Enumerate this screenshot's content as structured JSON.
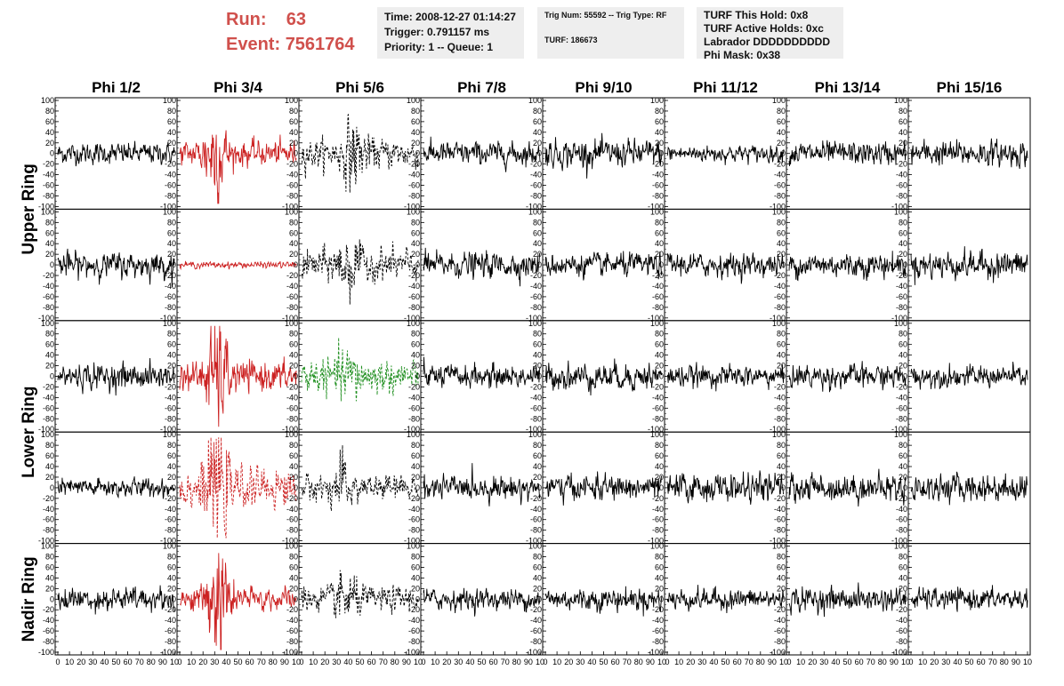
{
  "header": {
    "run_label": "Run:",
    "run_value": "63",
    "event_label": "Event:",
    "event_value": "7561764",
    "time_line": "Time: 2008-12-27 01:14:27",
    "trigger_line": "Trigger: 0.791157 ms",
    "priority_line": "Priority: 1 -- Queue: 1",
    "trig_line": "Trig Num: 55592 -- Trig Type: RF",
    "turf_line": "TURF: 186673",
    "hold_line": "TURF This Hold: 0x8",
    "active_line": "TURF Active Holds: 0xc",
    "labrador_line": "Labrador DDDDDDDDDD",
    "phimask_line": "Phi Mask: 0x38"
  },
  "colors": {
    "header_red": "#d0504c",
    "trace_black": "#000000",
    "trace_red": "#cc2222",
    "trace_green": "#1f8f1f",
    "box_bg": "#eeeeee"
  },
  "chart_data": {
    "type": "line",
    "columns": [
      "Phi 1/2",
      "Phi 3/4",
      "Phi 5/6",
      "Phi 7/8",
      "Phi 9/10",
      "Phi 11/12",
      "Phi 13/14",
      "Phi 15/16"
    ],
    "ring_labels": [
      {
        "label": "Upper Ring",
        "rows": [
          0,
          1
        ]
      },
      {
        "label": "Lower Ring",
        "rows": [
          2,
          3
        ]
      },
      {
        "label": "Nadir Ring",
        "rows": [
          4
        ]
      }
    ],
    "xlim": [
      0,
      100
    ],
    "ylim": [
      -100,
      100
    ],
    "xticks": [
      0,
      10,
      20,
      30,
      40,
      50,
      60,
      70,
      80,
      90,
      100
    ],
    "xtick_labels_bottom": "0 10 20 30 40 50 60 70 80 90 10",
    "yticks": [
      100,
      80,
      60,
      40,
      20,
      0,
      -20,
      -40,
      -60,
      -80,
      -100
    ],
    "panels": [
      [
        {
          "color": "black",
          "style": "solid",
          "amp": 10,
          "burst": 0,
          "center": 0.5
        },
        {
          "color": "red",
          "style": "solid",
          "amp": 12,
          "burst": 38,
          "center": 0.3
        },
        {
          "color": "black",
          "style": "dashed",
          "amp": 14,
          "burst": 25,
          "center": 0.45
        },
        {
          "color": "black",
          "style": "solid",
          "amp": 11,
          "burst": 0,
          "center": 0.5
        },
        {
          "color": "black",
          "style": "solid",
          "amp": 13,
          "burst": 0,
          "center": 0.5
        },
        {
          "color": "black",
          "style": "solid",
          "amp": 8,
          "burst": 0,
          "center": 0.5
        },
        {
          "color": "black",
          "style": "solid",
          "amp": 11,
          "burst": 0,
          "center": 0.5
        },
        {
          "color": "black",
          "style": "solid",
          "amp": 12,
          "burst": 0,
          "center": 0.5
        }
      ],
      [
        {
          "color": "black",
          "style": "solid",
          "amp": 12,
          "burst": 0,
          "center": 0.5
        },
        {
          "color": "red",
          "style": "solid",
          "amp": 3,
          "burst": 0,
          "center": 0.5
        },
        {
          "color": "black",
          "style": "dashed",
          "amp": 15,
          "burst": 20,
          "center": 0.4
        },
        {
          "color": "black",
          "style": "solid",
          "amp": 12,
          "burst": 0,
          "center": 0.5
        },
        {
          "color": "black",
          "style": "solid",
          "amp": 11,
          "burst": 0,
          "center": 0.5
        },
        {
          "color": "black",
          "style": "solid",
          "amp": 11,
          "burst": 0,
          "center": 0.5
        },
        {
          "color": "black",
          "style": "solid",
          "amp": 12,
          "burst": 0,
          "center": 0.5
        },
        {
          "color": "black",
          "style": "solid",
          "amp": 13,
          "burst": 0,
          "center": 0.5
        }
      ],
      [
        {
          "color": "black",
          "style": "solid",
          "amp": 12,
          "burst": 0,
          "center": 0.5
        },
        {
          "color": "red",
          "style": "solid",
          "amp": 14,
          "burst": 45,
          "center": 0.32
        },
        {
          "color": "green",
          "style": "dashed",
          "amp": 16,
          "burst": 14,
          "center": 0.4
        },
        {
          "color": "black",
          "style": "solid",
          "amp": 11,
          "burst": 0,
          "center": 0.5
        },
        {
          "color": "black",
          "style": "solid",
          "amp": 13,
          "burst": 0,
          "center": 0.5
        },
        {
          "color": "black",
          "style": "solid",
          "amp": 10,
          "burst": 0,
          "center": 0.5
        },
        {
          "color": "black",
          "style": "solid",
          "amp": 11,
          "burst": 0,
          "center": 0.5
        },
        {
          "color": "black",
          "style": "solid",
          "amp": 10,
          "burst": 0,
          "center": 0.5
        }
      ],
      [
        {
          "color": "black",
          "style": "solid",
          "amp": 9,
          "burst": 0,
          "center": 0.5
        },
        {
          "color": "red",
          "style": "dashed",
          "amp": 18,
          "burst": 48,
          "center": 0.32
        },
        {
          "color": "black",
          "style": "dashed",
          "amp": 12,
          "burst": 16,
          "center": 0.35
        },
        {
          "color": "black",
          "style": "solid",
          "amp": 11,
          "burst": 0,
          "center": 0.5
        },
        {
          "color": "black",
          "style": "solid",
          "amp": 12,
          "burst": 0,
          "center": 0.5
        },
        {
          "color": "black",
          "style": "solid",
          "amp": 13,
          "burst": 0,
          "center": 0.5
        },
        {
          "color": "black",
          "style": "solid",
          "amp": 13,
          "burst": 0,
          "center": 0.5
        },
        {
          "color": "black",
          "style": "solid",
          "amp": 13,
          "burst": 0,
          "center": 0.5
        }
      ],
      [
        {
          "color": "black",
          "style": "solid",
          "amp": 11,
          "burst": 0,
          "center": 0.5
        },
        {
          "color": "red",
          "style": "solid",
          "amp": 11,
          "burst": 48,
          "center": 0.33
        },
        {
          "color": "black",
          "style": "dashed",
          "amp": 12,
          "burst": 18,
          "center": 0.38
        },
        {
          "color": "black",
          "style": "solid",
          "amp": 10,
          "burst": 0,
          "center": 0.5
        },
        {
          "color": "black",
          "style": "solid",
          "amp": 11,
          "burst": 0,
          "center": 0.5
        },
        {
          "color": "black",
          "style": "solid",
          "amp": 10,
          "burst": 0,
          "center": 0.5
        },
        {
          "color": "black",
          "style": "solid",
          "amp": 11,
          "burst": 0,
          "center": 0.5
        },
        {
          "color": "black",
          "style": "solid",
          "amp": 10,
          "burst": 0,
          "center": 0.5
        }
      ]
    ]
  }
}
